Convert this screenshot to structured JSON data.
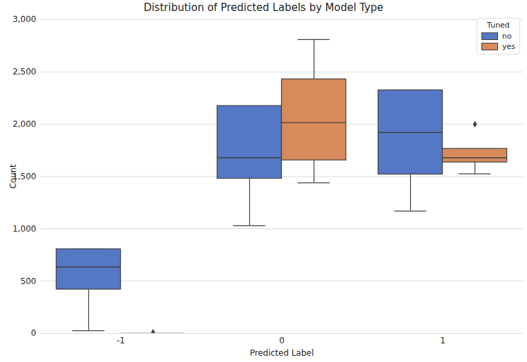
{
  "chart_data": {
    "type": "box",
    "title": "Distribution of Predicted Labels by Model Type",
    "x_label": "Predicted Label",
    "y_label": "Count",
    "categories": [
      "-1",
      "0",
      "1"
    ],
    "legend_title": "Tuned",
    "legend": "upper right",
    "grid": true,
    "ylim": [
      0,
      3000
    ],
    "yticks": [
      0,
      500,
      1000,
      1500,
      2000,
      2500,
      3000
    ],
    "series": [
      {
        "name": "no",
        "color": "#5578c4",
        "boxes": [
          {
            "min": 25,
            "q1": 420,
            "median": 635,
            "q3": 805,
            "max": 805,
            "outliers": []
          },
          {
            "min": 1030,
            "q1": 1480,
            "median": 1680,
            "q3": 2175,
            "max": 2175,
            "outliers": []
          },
          {
            "min": 1170,
            "q1": 1520,
            "median": 1920,
            "q3": 2325,
            "max": 2325,
            "outliers": []
          }
        ]
      },
      {
        "name": "yes",
        "color": "#d88a5a",
        "boxes": [
          {
            "min": 0,
            "q1": 0,
            "median": 0,
            "q3": 0,
            "max": 0,
            "outliers": [
              10
            ]
          },
          {
            "min": 1440,
            "q1": 1655,
            "median": 2015,
            "q3": 2430,
            "max": 2810,
            "outliers": []
          },
          {
            "min": 1525,
            "q1": 1635,
            "median": 1680,
            "q3": 1765,
            "max": 1765,
            "outliers": [
              2000
            ]
          }
        ]
      }
    ]
  }
}
